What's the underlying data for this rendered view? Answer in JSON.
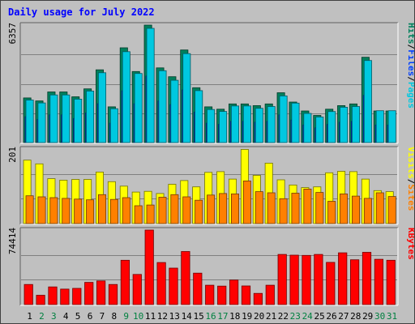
{
  "chart_data": {
    "type": "bar",
    "title": "Daily usage for July 2022",
    "categories": [
      "1",
      "2",
      "3",
      "4",
      "5",
      "6",
      "7",
      "8",
      "9",
      "10",
      "11",
      "12",
      "13",
      "14",
      "15",
      "16",
      "17",
      "18",
      "19",
      "20",
      "21",
      "22",
      "23",
      "24",
      "25",
      "26",
      "27",
      "28",
      "29",
      "30",
      "31"
    ],
    "weekend_days": [
      "2",
      "3",
      "9",
      "10",
      "16",
      "17",
      "23",
      "24",
      "30",
      "31"
    ],
    "colors": {
      "title": "#0000ff",
      "hits": "#00805c",
      "files": "#0040ff",
      "pages": "#00c8e0",
      "visits": "#ffff00",
      "sites": "#ff8000",
      "kbytes": "#ff0000",
      "weekday_label": "#000000",
      "weekend_label": "#008040",
      "background": "#c0c0c0",
      "gridline": "#808080"
    },
    "panels": [
      {
        "id": "hits-files-pages",
        "ymax": 6357,
        "ymax_label": "6357",
        "legend": [
          "Pages",
          "/",
          "Files",
          "/",
          "Hits"
        ],
        "series": [
          {
            "name": "Hits",
            "values": [
              2414,
              2253,
              2739,
              2739,
              2479,
              2908,
              3935,
              1935,
              5128,
              3847,
              6357,
              4043,
              3565,
              5013,
              2967,
              1935,
              1805,
              2091,
              2091,
              2001,
              2091,
              2696,
              2193,
              1709,
              1468,
              1805,
              2001,
              2091,
              4618,
              1709,
              1709
            ]
          },
          {
            "name": "Files",
            "values": [
              1400,
              1250,
              1500,
              1500,
              1300,
              1600,
              2100,
              1050,
              2800,
              2100,
              3600,
              2250,
              2050,
              2850,
              1650,
              1050,
              980,
              1150,
              1150,
              1100,
              1150,
              1500,
              1220,
              950,
              800,
              980,
              1100,
              1150,
              2550,
              950,
              950
            ]
          },
          {
            "name": "Pages",
            "values": [
              2300,
              2146,
              2580,
              2580,
              2350,
              2790,
              3780,
              1832,
              4920,
              3738,
              6180,
              3888,
              3372,
              4815,
              2811,
              1790,
              1683,
              1983,
              1983,
              1853,
              1953,
              2526,
              2136,
              1578,
              1386,
              1680,
              1911,
              1953,
              4443,
              1722,
              1722
            ]
          }
        ]
      },
      {
        "id": "visits-sites",
        "ymax": 201,
        "ymax_label": "201",
        "legend": [
          "Sites",
          "/",
          "Visits"
        ],
        "series": [
          {
            "name": "Visits",
            "values": [
              171,
              161,
              121,
              117,
              119,
              119,
              139,
              113,
              101,
              85,
              87,
              81,
              106,
              116,
              99,
              138,
              140,
              120,
              200,
              130,
              163,
              118,
              104,
              97,
              99,
              137,
              141,
              140,
              120,
              89,
              86
            ]
          },
          {
            "name": "Sites",
            "values": [
              75,
              72,
              70,
              68,
              66,
              64,
              78,
              65,
              70,
              48,
              50,
              71,
              78,
              72,
              63,
              77,
              81,
              80,
              115,
              86,
              83,
              67,
              82,
              93,
              84,
              60,
              80,
              74,
              68,
              83,
              73
            ]
          }
        ]
      },
      {
        "id": "kbytes",
        "ymax": 74414,
        "ymax_label": "74414",
        "legend": [
          "KBytes"
        ],
        "series": [
          {
            "name": "KBytes",
            "values": [
              20035,
              9301,
              17601,
              15458,
              16173,
              22181,
              23610,
              20035,
              44213,
              30118,
              74414,
              41996,
              36417,
              52944,
              31406,
              19321,
              18463,
              24468,
              18606,
              11159,
              19321,
              50080,
              49364,
              49078,
              50080,
              42139,
              51653,
              44713,
              52153,
              45215,
              44213
            ]
          }
        ]
      }
    ]
  }
}
